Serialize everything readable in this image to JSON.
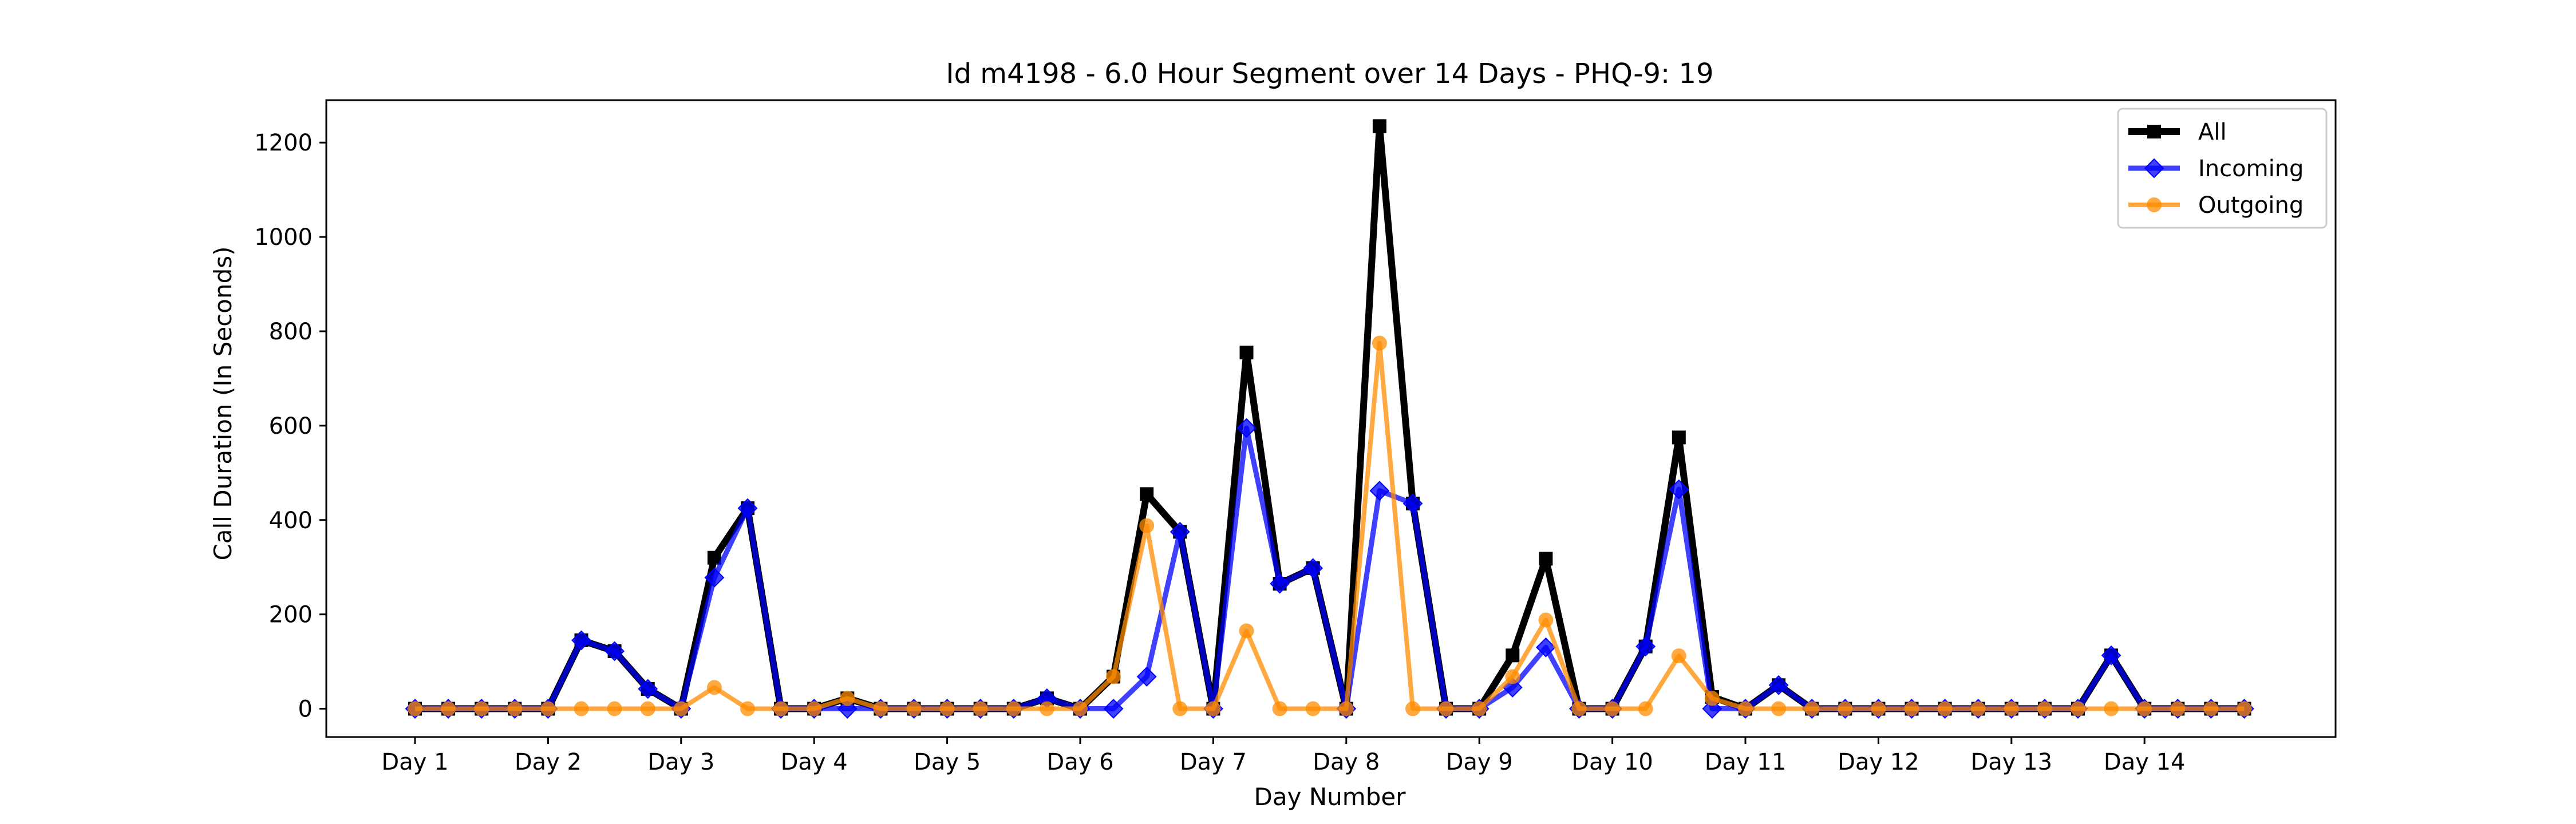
{
  "chart_data": {
    "type": "line",
    "title": "Id m4198 - 6.0 Hour Segment over 14 Days - PHQ-9: 19",
    "xlabel": "Day Number",
    "ylabel": "Call Duration (In Seconds)",
    "x": [
      0,
      1,
      2,
      3,
      4,
      5,
      6,
      7,
      8,
      9,
      10,
      11,
      12,
      13,
      14,
      15,
      16,
      17,
      18,
      19,
      20,
      21,
      22,
      23,
      24,
      25,
      26,
      27,
      28,
      29,
      30,
      31,
      32,
      33,
      34,
      35,
      36,
      37,
      38,
      39,
      40,
      41,
      42,
      43,
      44,
      45,
      46,
      47,
      48,
      49,
      50,
      51,
      52,
      53,
      54,
      55
    ],
    "x_ticks": [
      0,
      4,
      8,
      12,
      16,
      20,
      24,
      28,
      32,
      36,
      40,
      44,
      48,
      52
    ],
    "x_tick_labels": [
      "Day 1",
      "Day 2",
      "Day 3",
      "Day 4",
      "Day 5",
      "Day 6",
      "Day 7",
      "Day 8",
      "Day 9",
      "Day 10",
      "Day 11",
      "Day 12",
      "Day 13",
      "Day 14"
    ],
    "ylim": [
      -60,
      1290
    ],
    "y_ticks": [
      0,
      200,
      400,
      600,
      800,
      1000,
      1200
    ],
    "y_tick_labels": [
      "0",
      "200",
      "400",
      "600",
      "800",
      "1000",
      "1200"
    ],
    "grid": false,
    "legend_position": "top-right",
    "series": [
      {
        "name": "All",
        "color": "#000000",
        "marker": "square",
        "values": [
          0,
          0,
          0,
          0,
          0,
          145,
          122,
          42,
          0,
          320,
          425,
          0,
          0,
          22,
          0,
          0,
          0,
          0,
          0,
          22,
          0,
          68,
          455,
          375,
          0,
          755,
          265,
          298,
          0,
          1235,
          435,
          0,
          0,
          113,
          318,
          0,
          0,
          132,
          575,
          25,
          0,
          50,
          0,
          0,
          0,
          0,
          0,
          0,
          0,
          0,
          0,
          113,
          0,
          0,
          0,
          0
        ]
      },
      {
        "name": "Incoming",
        "color": "#0000ff",
        "marker": "diamond",
        "values": [
          0,
          0,
          0,
          0,
          0,
          145,
          122,
          42,
          0,
          278,
          425,
          0,
          0,
          0,
          0,
          0,
          0,
          0,
          0,
          22,
          0,
          0,
          68,
          375,
          0,
          595,
          265,
          298,
          0,
          462,
          435,
          0,
          0,
          45,
          130,
          0,
          0,
          132,
          465,
          0,
          0,
          50,
          0,
          0,
          0,
          0,
          0,
          0,
          0,
          0,
          0,
          113,
          0,
          0,
          0,
          0
        ]
      },
      {
        "name": "Outgoing",
        "color": "#ff8c00",
        "marker": "circle",
        "values": [
          0,
          0,
          0,
          0,
          0,
          0,
          0,
          0,
          0,
          45,
          0,
          0,
          0,
          22,
          0,
          0,
          0,
          0,
          0,
          0,
          0,
          68,
          388,
          0,
          0,
          165,
          0,
          0,
          0,
          775,
          0,
          0,
          0,
          68,
          188,
          0,
          0,
          0,
          112,
          22,
          0,
          0,
          0,
          0,
          0,
          0,
          0,
          0,
          0,
          0,
          0,
          0,
          0,
          0,
          0,
          0
        ]
      }
    ]
  }
}
